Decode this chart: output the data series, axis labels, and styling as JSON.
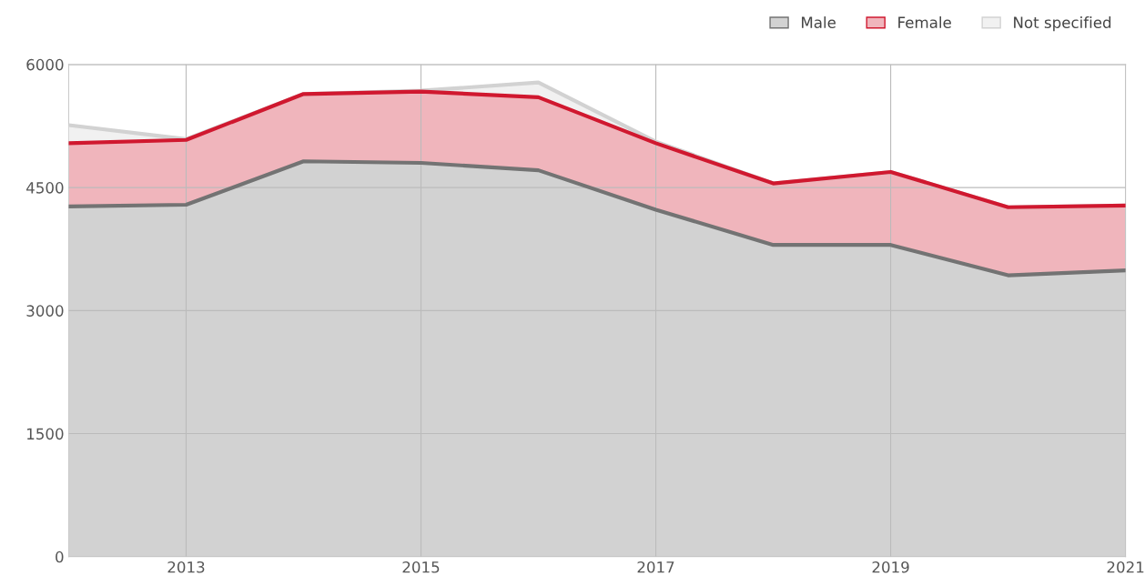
{
  "chart_data": {
    "type": "area",
    "stacked": true,
    "x": [
      2012,
      2013,
      2014,
      2015,
      2016,
      2017,
      2018,
      2019,
      2020,
      2021
    ],
    "series": [
      {
        "name": "Male",
        "color": "#737373",
        "values": [
          4270,
          4290,
          4820,
          4800,
          4710,
          4230,
          3800,
          3800,
          3430,
          3490
        ]
      },
      {
        "name": "Female",
        "color": "#d0182f",
        "values": [
          770,
          790,
          820,
          870,
          890,
          810,
          750,
          890,
          830,
          790
        ]
      },
      {
        "name": "Not specified",
        "color": "#d2d2d2",
        "values": [
          220,
          10,
          0,
          10,
          180,
          20,
          0,
          0,
          0,
          0
        ]
      }
    ],
    "xlim": [
      2012,
      2021
    ],
    "xticks": [
      2013,
      2015,
      2017,
      2019,
      2021
    ],
    "ylim": [
      0,
      6000
    ],
    "yticks": [
      0,
      1500,
      3000,
      4500,
      6000
    ],
    "grid": true,
    "legend": "top right"
  }
}
